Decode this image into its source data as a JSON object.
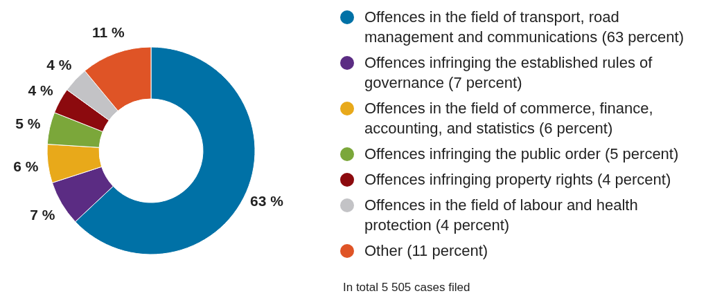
{
  "chart_data": {
    "type": "donut",
    "categories": [
      "Offences in the field of transport, road management and communications (63 percent)",
      "Offences infringing the established rules of governance (7 percent)",
      "Offences in the field of commerce, finance, accounting, and statistics (6 percent)",
      "Offences infringing the public order (5 percent)",
      "Offences infringing property rights (4 percent)",
      "Offences in the field of labour and health protection (4 percent)",
      "Other (11 percent)"
    ],
    "values": [
      63,
      7,
      6,
      5,
      4,
      4,
      11
    ],
    "value_labels": [
      "63 %",
      "7 %",
      "6 %",
      "5 %",
      "4 %",
      "4 %",
      "11 %"
    ],
    "colors": [
      "#0071a6",
      "#5b2c83",
      "#e8a91a",
      "#7ba73a",
      "#8c0a0e",
      "#c3c3c6",
      "#df5426"
    ],
    "legend": "right",
    "annotations": [
      "In total 5 505 cases filed"
    ]
  }
}
